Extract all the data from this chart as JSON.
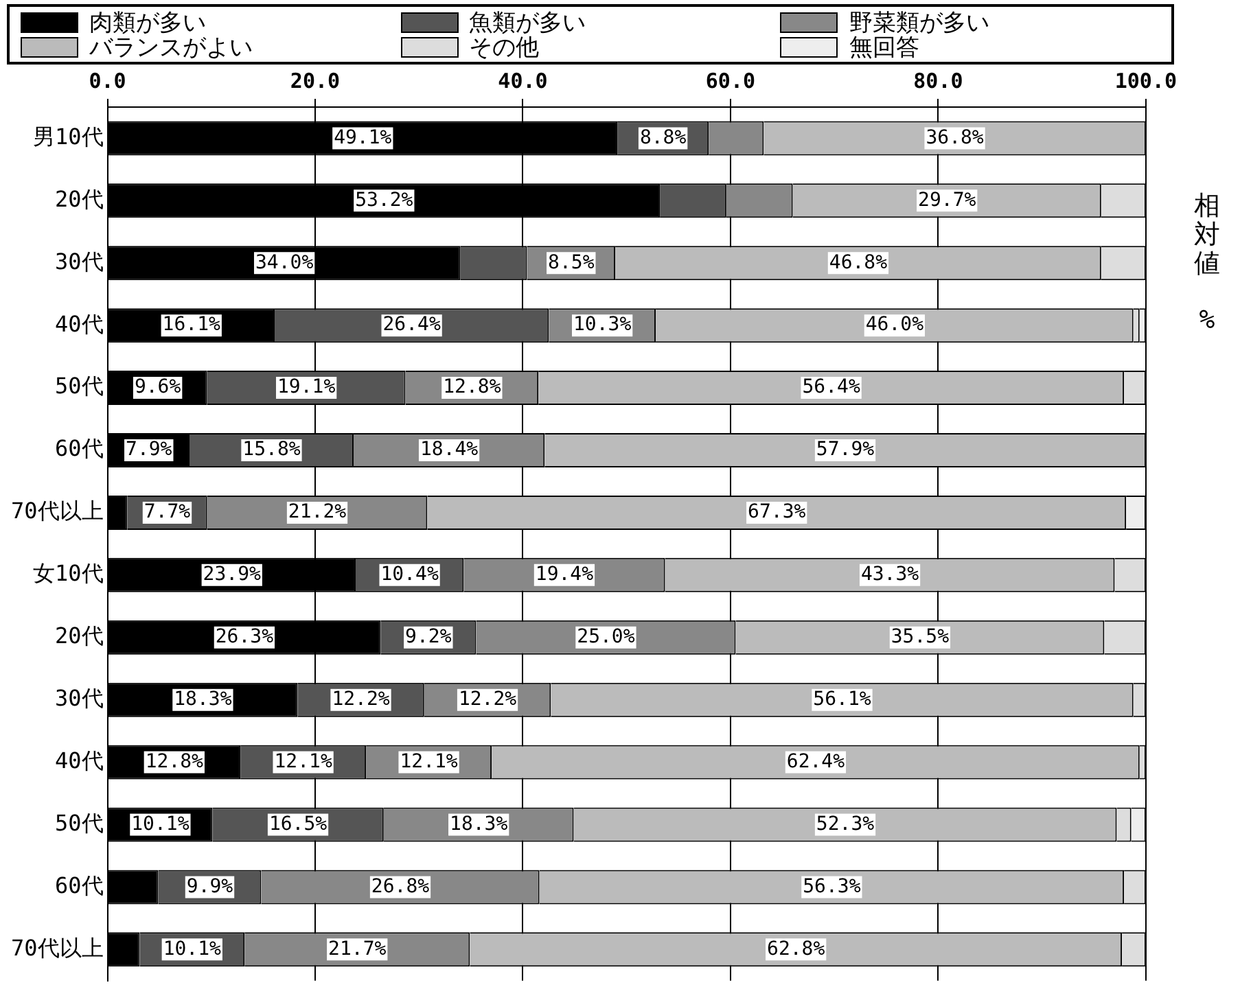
{
  "chart_data": {
    "type": "bar",
    "orientation": "horizontal",
    "stacked": true,
    "annotations": [
      "相対値 %"
    ],
    "categories": [
      "男10代",
      "20代",
      "30代",
      "40代",
      "50代",
      "60代",
      "70代以上",
      "女10代",
      "20代",
      "30代",
      "40代",
      "50代",
      "60代",
      "70代以上"
    ],
    "series": [
      {
        "name": "肉類が多い",
        "color": "#000000",
        "values": [
          49.1,
          53.2,
          34.0,
          16.1,
          9.6,
          7.9,
          1.9,
          23.9,
          26.3,
          18.3,
          12.8,
          10.1,
          4.9,
          3.1
        ],
        "value_labels": [
          "49.1%",
          "53.2%",
          "34.0%",
          "16.1%",
          "9.6%",
          "7.9%",
          null,
          "23.9%",
          "26.3%",
          "18.3%",
          "12.8%",
          "10.1%",
          null,
          null
        ]
      },
      {
        "name": "魚類が多い",
        "color": "#555555",
        "values": [
          8.8,
          6.4,
          6.4,
          26.4,
          19.1,
          15.8,
          7.7,
          10.4,
          9.2,
          12.2,
          12.1,
          16.5,
          9.9,
          10.1
        ],
        "value_labels": [
          "8.8%",
          null,
          null,
          "26.4%",
          "19.1%",
          "15.8%",
          "7.7%",
          "10.4%",
          "9.2%",
          "12.2%",
          "12.1%",
          "16.5%",
          "9.9%",
          "10.1%"
        ]
      },
      {
        "name": "野菜類が多い",
        "color": "#888888",
        "values": [
          5.3,
          6.4,
          8.5,
          10.3,
          12.8,
          18.4,
          21.2,
          19.4,
          25.0,
          12.2,
          12.1,
          18.3,
          26.8,
          21.7
        ],
        "value_labels": [
          null,
          null,
          "8.5%",
          "10.3%",
          "12.8%",
          "18.4%",
          "21.2%",
          "19.4%",
          "25.0%",
          "12.2%",
          "12.1%",
          "18.3%",
          "26.8%",
          "21.7%"
        ]
      },
      {
        "name": "バランスがよい",
        "color": "#bbbbbb",
        "values": [
          36.8,
          29.7,
          46.8,
          46.0,
          56.4,
          57.9,
          67.3,
          43.3,
          35.5,
          56.1,
          62.4,
          52.3,
          56.3,
          62.8
        ],
        "value_labels": [
          "36.8%",
          "29.7%",
          "46.8%",
          "46.0%",
          "56.4%",
          "57.9%",
          "67.3%",
          "43.3%",
          "35.5%",
          "56.1%",
          "62.4%",
          "52.3%",
          "56.3%",
          "62.8%"
        ]
      },
      {
        "name": "その他",
        "color": "#dddddd",
        "values": [
          0,
          4.3,
          4.3,
          0.6,
          2.1,
          0,
          0,
          3.0,
          4.0,
          1.2,
          0.6,
          1.4,
          2.1,
          2.3
        ]
      },
      {
        "name": "無回答",
        "color": "#eeeeee",
        "values": [
          0,
          0,
          0,
          0.6,
          0,
          0,
          1.9,
          0,
          0,
          0,
          0,
          1.4,
          0,
          0
        ]
      }
    ],
    "xlim": [
      0,
      100
    ],
    "xticks": [
      {
        "value": 0,
        "label": "0.0"
      },
      {
        "value": 20,
        "label": "20.0"
      },
      {
        "value": 40,
        "label": "40.0"
      },
      {
        "value": 60,
        "label": "60.0"
      },
      {
        "value": 80,
        "label": "80.0"
      },
      {
        "value": 100,
        "label": "100.0"
      }
    ],
    "grid": "x",
    "legend": "top"
  }
}
